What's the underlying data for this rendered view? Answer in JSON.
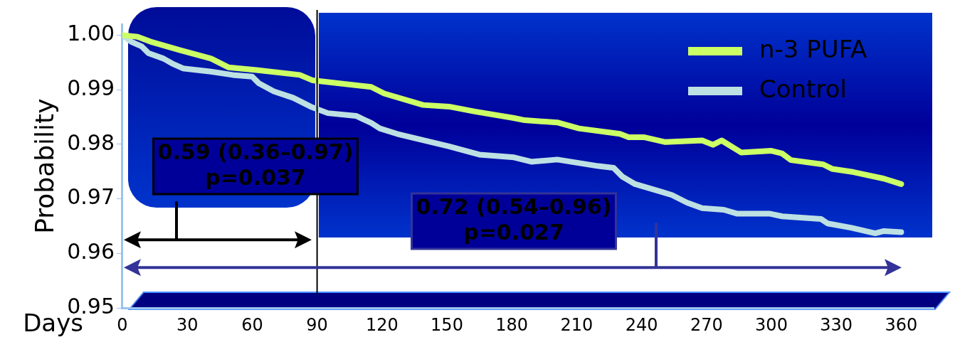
{
  "chart_data": {
    "type": "line",
    "xlabel": "Days",
    "ylabel": "Probability",
    "xlim": [
      0,
      375
    ],
    "xticks": [
      0,
      30,
      60,
      90,
      120,
      150,
      180,
      210,
      240,
      270,
      300,
      330,
      360
    ],
    "ylim": [
      0.95,
      1.002
    ],
    "yticks": [
      {
        "value": 0.95,
        "label": "0.95"
      },
      {
        "value": 0.96,
        "label": "0.96"
      },
      {
        "value": 0.97,
        "label": "0.97"
      },
      {
        "value": 0.98,
        "label": "0.98"
      },
      {
        "value": 0.99,
        "label": "0.99"
      },
      {
        "value": 1,
        "label": "1.00"
      }
    ],
    "grid": false,
    "legend": "top right",
    "series": [
      {
        "name": "n-3 PUFA",
        "color": "#ccff66",
        "x": [
          0,
          7,
          13,
          27,
          41,
          49,
          62,
          82,
          88,
          115,
          121,
          139,
          151,
          163,
          181,
          186,
          201,
          211,
          230,
          234,
          241,
          251,
          268,
          273,
          277,
          286,
          300,
          305,
          309,
          324,
          328,
          338,
          352,
          360
        ],
        "values": [
          1.0,
          0.9997,
          0.9988,
          0.9972,
          0.9957,
          0.9941,
          0.9936,
          0.9927,
          0.9917,
          0.9905,
          0.9893,
          0.9872,
          0.9869,
          0.986,
          0.9848,
          0.9844,
          0.984,
          0.9829,
          0.9819,
          0.9813,
          0.9813,
          0.9804,
          0.9807,
          0.9799,
          0.9807,
          0.9785,
          0.9788,
          0.9783,
          0.9771,
          0.9763,
          0.9755,
          0.9749,
          0.9737,
          0.9727
        ]
      },
      {
        "name": "Control",
        "color": "#bde0e3",
        "x": [
          0,
          4,
          9,
          12,
          19,
          23,
          28,
          41,
          51,
          60,
          63,
          70,
          79,
          87,
          95,
          108,
          115,
          119,
          127,
          151,
          165,
          181,
          189,
          201,
          220,
          227,
          231,
          237,
          249,
          254,
          261,
          268,
          278,
          284,
          299,
          305,
          323,
          326,
          337,
          348,
          352,
          360
        ],
        "values": [
          1.0,
          0.9988,
          0.9979,
          0.9967,
          0.9957,
          0.9948,
          0.9939,
          0.9933,
          0.9927,
          0.9924,
          0.9912,
          0.9897,
          0.9885,
          0.9869,
          0.9857,
          0.9852,
          0.9839,
          0.9829,
          0.9819,
          0.9796,
          0.9781,
          0.9776,
          0.9768,
          0.9772,
          0.976,
          0.9757,
          0.9741,
          0.9727,
          0.9713,
          0.9707,
          0.9693,
          0.9683,
          0.968,
          0.9673,
          0.9673,
          0.9668,
          0.9663,
          0.9655,
          0.9647,
          0.9637,
          0.9641,
          0.9639
        ]
      }
    ],
    "ref_lines": [
      {
        "axis": "x",
        "value": 90,
        "color": "#000000"
      }
    ],
    "annotations": [
      "0.59 (0.36–0.97)\np=0.037",
      "0.72 (0.54–0.96)\np=0.027"
    ]
  }
}
